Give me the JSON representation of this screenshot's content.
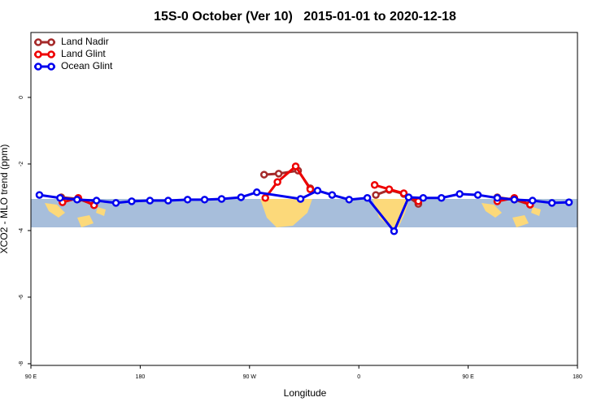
{
  "chart_data": {
    "type": "line",
    "title": "15S-0 October (Ver 10)   2015-01-01 to 2020-12-18",
    "x_label": "Longitude",
    "y_label": "XCO2 - MLO trend (ppm)",
    "xlim": [
      90,
      540
    ],
    "ylim": [
      -8.05,
      1.95
    ],
    "xticks": [
      {
        "value": 90,
        "label": "90 E"
      },
      180,
      {
        "value": 270,
        "label": "90 W"
      },
      {
        "value": 360,
        "label": "0"
      },
      {
        "value": 450,
        "label": "90 E"
      },
      {
        "value": 540,
        "label": "180"
      }
    ],
    "yticks": [
      0,
      -2,
      -4,
      -6,
      -8
    ],
    "legend": "top-left",
    "series": [
      {
        "name": "Land Nadir",
        "color": "#a52a2a",
        "x": [
          115,
          129,
          142,
          null,
          282,
          294,
          310,
          320,
          null,
          374,
          385,
          397,
          409,
          null,
          474,
          488,
          501
        ],
        "values": [
          -3.0,
          -3.05,
          -3.22,
          null,
          -2.32,
          -2.29,
          -2.2,
          -2.73,
          null,
          -2.93,
          -2.78,
          -2.9,
          -3.2,
          null,
          -3.0,
          -3.07,
          -3.22
        ]
      },
      {
        "name": "Land Glint",
        "color": "#ee0000",
        "x": [
          116,
          129,
          142,
          null,
          283,
          293,
          308,
          320,
          null,
          373,
          385,
          397,
          409,
          null,
          474,
          488,
          501
        ],
        "values": [
          -3.15,
          -3.02,
          -3.24,
          null,
          -3.02,
          -2.54,
          -2.07,
          -2.76,
          null,
          -2.63,
          -2.76,
          -2.88,
          -3.12,
          null,
          -3.12,
          -3.02,
          -3.22
        ]
      },
      {
        "name": "Ocean Glint",
        "color": "#0000ee",
        "x": [
          97,
          114,
          128,
          144,
          160,
          173,
          188,
          203,
          219,
          233,
          247,
          263,
          276,
          312,
          326,
          338,
          352,
          367,
          389,
          401,
          413,
          428,
          443,
          458,
          474,
          488,
          503,
          519,
          533
        ],
        "values": [
          -2.93,
          -3.02,
          -3.07,
          -3.1,
          -3.17,
          -3.12,
          -3.1,
          -3.1,
          -3.07,
          -3.07,
          -3.05,
          -3.0,
          -2.85,
          -3.05,
          -2.8,
          -2.93,
          -3.07,
          -3.02,
          -4.02,
          -3.0,
          -3.02,
          -3.02,
          -2.9,
          -2.93,
          -3.02,
          -3.07,
          -3.1,
          -3.17,
          -3.15
        ]
      }
    ]
  }
}
